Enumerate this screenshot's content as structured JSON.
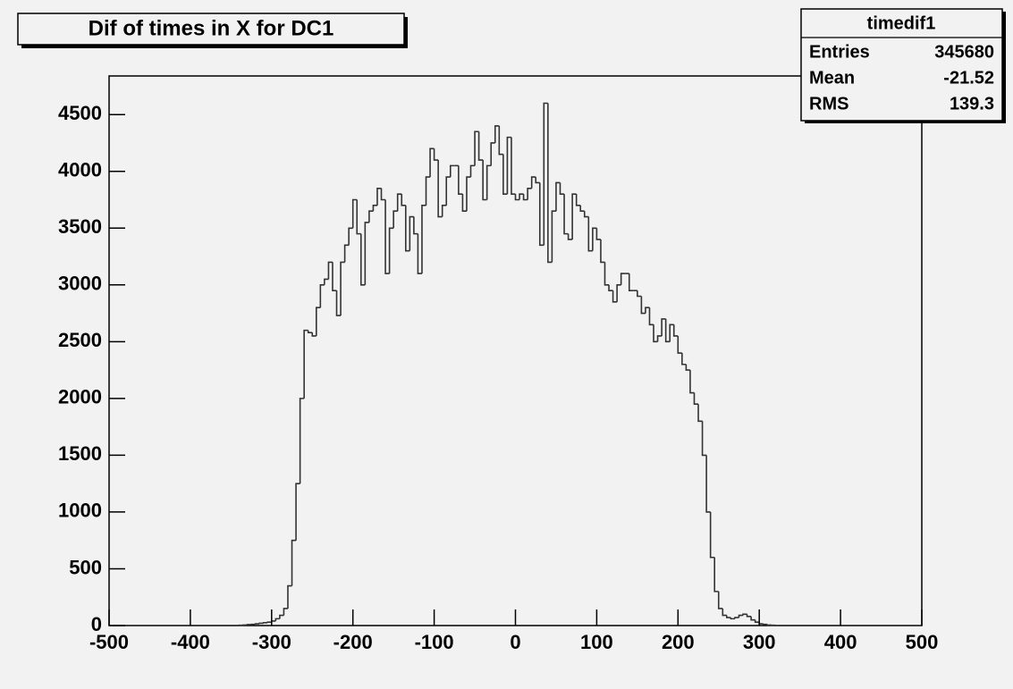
{
  "chart_data": {
    "type": "histogram",
    "title": "Dif of times in X for DC1",
    "bins": [
      -500,
      -495,
      -490,
      -485,
      -480,
      -475,
      -470,
      -465,
      -460,
      -455,
      -450,
      -445,
      -440,
      -435,
      -430,
      -425,
      -420,
      -415,
      -410,
      -405,
      -400,
      -395,
      -390,
      -385,
      -380,
      -375,
      -370,
      -365,
      -360,
      -355,
      -350,
      -345,
      -340,
      -335,
      -330,
      -325,
      -320,
      -315,
      -310,
      -305,
      -300,
      -295,
      -290,
      -285,
      -280,
      -275,
      -270,
      -265,
      -260,
      -255,
      -250,
      -245,
      -240,
      -235,
      -230,
      -225,
      -220,
      -215,
      -210,
      -205,
      -200,
      -195,
      -190,
      -185,
      -180,
      -175,
      -170,
      -165,
      -160,
      -155,
      -150,
      -145,
      -140,
      -135,
      -130,
      -125,
      -120,
      -115,
      -110,
      -105,
      -100,
      -95,
      -90,
      -85,
      -80,
      -75,
      -70,
      -65,
      -60,
      -55,
      -50,
      -45,
      -40,
      -35,
      -30,
      -25,
      -20,
      -15,
      -10,
      -5,
      0,
      5,
      10,
      15,
      20,
      25,
      30,
      35,
      40,
      45,
      50,
      55,
      60,
      65,
      70,
      75,
      80,
      85,
      90,
      95,
      100,
      105,
      110,
      115,
      120,
      125,
      130,
      135,
      140,
      145,
      150,
      155,
      160,
      165,
      170,
      175,
      180,
      185,
      190,
      195,
      200,
      205,
      210,
      215,
      220,
      225,
      230,
      235,
      240,
      245,
      250,
      255,
      260,
      265,
      270,
      275,
      280,
      285,
      290,
      295,
      300,
      305,
      310,
      315,
      320,
      325,
      330,
      335,
      340,
      345,
      350,
      355,
      360,
      365,
      370,
      375,
      380,
      385,
      390,
      395,
      400,
      405,
      410,
      415,
      420,
      425,
      430,
      435,
      440,
      445,
      450,
      455,
      460,
      465,
      470,
      475,
      480,
      485,
      490,
      495,
      500
    ],
    "values": [
      0,
      0,
      0,
      0,
      0,
      0,
      0,
      0,
      0,
      0,
      0,
      0,
      0,
      0,
      0,
      0,
      0,
      0,
      0,
      0,
      0,
      0,
      0,
      0,
      0,
      0,
      0,
      0,
      0,
      0,
      0,
      0,
      3,
      5,
      8,
      10,
      15,
      20,
      25,
      30,
      40,
      60,
      90,
      150,
      350,
      750,
      1250,
      2000,
      2600,
      2580,
      2550,
      2800,
      3000,
      3050,
      3200,
      2950,
      2730,
      3200,
      3350,
      3500,
      3750,
      3450,
      3000,
      3550,
      3650,
      3700,
      3850,
      3750,
      3100,
      3500,
      3650,
      3800,
      3700,
      3300,
      3600,
      3450,
      3100,
      3700,
      3950,
      4200,
      4100,
      3600,
      3700,
      3950,
      4050,
      4050,
      3800,
      3650,
      3950,
      4050,
      4350,
      4100,
      3750,
      4050,
      4250,
      4400,
      4150,
      3800,
      4300,
      3800,
      3750,
      3800,
      3750,
      3850,
      3950,
      3900,
      3350,
      4600,
      3200,
      3650,
      3900,
      3800,
      3450,
      3400,
      3800,
      3700,
      3650,
      3600,
      3300,
      3500,
      3400,
      3200,
      3000,
      2950,
      2850,
      3000,
      3100,
      3100,
      2950,
      2950,
      2900,
      2750,
      2800,
      2650,
      2500,
      2550,
      2700,
      2500,
      2650,
      2550,
      2400,
      2300,
      2250,
      2050,
      1950,
      1800,
      1500,
      1000,
      600,
      300,
      150,
      90,
      70,
      60,
      70,
      90,
      100,
      80,
      50,
      30,
      15,
      10,
      5,
      3,
      0,
      0,
      0,
      0,
      0,
      0,
      0,
      0,
      0,
      0,
      0,
      0,
      0,
      0,
      0,
      0,
      0,
      0,
      0,
      0,
      0,
      0,
      0,
      0,
      0,
      0,
      0,
      0,
      0,
      0,
      0,
      0,
      0,
      0,
      0,
      0
    ],
    "color": "#333333",
    "xlim": [
      -500,
      500
    ],
    "xticks": [
      -500,
      -400,
      -300,
      -200,
      -100,
      0,
      100,
      200,
      300,
      400,
      500
    ],
    "ylim": [
      0,
      4840
    ],
    "yticks": [
      0,
      500,
      1000,
      1500,
      2000,
      2500,
      3000,
      3500,
      4000,
      4500
    ],
    "stats": {
      "title": "timedif1",
      "rows": [
        {
          "label": "Entries",
          "value": 345680
        },
        {
          "label": "Mean",
          "value": -21.52
        },
        {
          "label": "RMS",
          "value": 139.3
        }
      ]
    }
  }
}
